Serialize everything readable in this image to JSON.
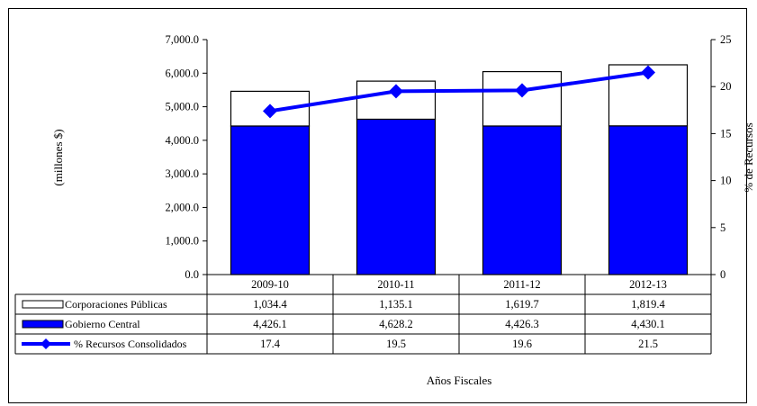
{
  "chart_data": {
    "type": "bar",
    "categories": [
      "2009-10",
      "2010-11",
      "2011-12",
      "2012-13"
    ],
    "series": [
      {
        "name": "Gobierno Central",
        "kind": "bar",
        "color": "#0000ff",
        "values": [
          4426.1,
          4628.2,
          4426.3,
          4430.1
        ],
        "labels": [
          "4,426.1",
          "4,628.2",
          "4,426.3",
          "4,430.1"
        ]
      },
      {
        "name": "Corporaciones Públicas",
        "kind": "bar",
        "color": "#ffffff",
        "values": [
          1034.4,
          1135.1,
          1619.7,
          1819.4
        ],
        "labels": [
          "1,034.4",
          "1,135.1",
          "1,619.7",
          "1,819.4"
        ]
      },
      {
        "name": "% Recursos Consolidados",
        "kind": "line",
        "axis": "right",
        "color": "#0000ff",
        "values": [
          17.4,
          19.5,
          19.6,
          21.5
        ],
        "labels": [
          "17.4",
          "19.5",
          "19.6",
          "21.5"
        ]
      }
    ],
    "stacked": true,
    "ylabel": "(millones $)",
    "y2label": "% de Recursos",
    "xlabel": "Años Fiscales",
    "ylim": [
      0,
      7000
    ],
    "y2lim": [
      0,
      25
    ],
    "yticks": [
      "0.0",
      "1,000.0",
      "2,000.0",
      "3,000.0",
      "4,000.0",
      "5,000.0",
      "6,000.0",
      "7,000.0"
    ],
    "y2ticks": [
      "0",
      "5",
      "10",
      "15",
      "20",
      "25"
    ],
    "legend": "data table rows below chart",
    "grid": false
  }
}
